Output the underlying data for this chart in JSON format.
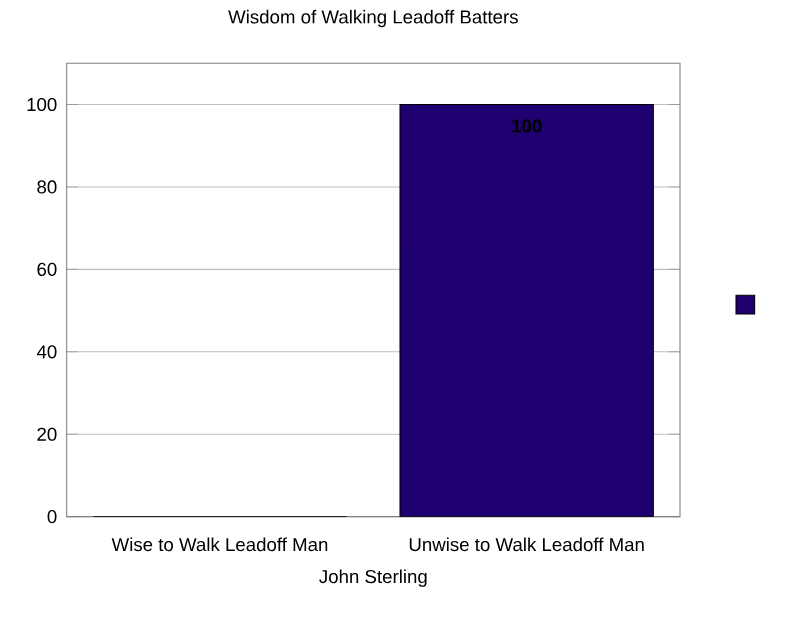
{
  "chart_data": {
    "type": "bar",
    "title": "Wisdom of Walking Leadoff Batters",
    "xlabel": "John Sterling",
    "categories": [
      "Wise to Walk Leadoff Man",
      "Unwise to Walk Leadoff Man"
    ],
    "values": [
      0,
      100
    ],
    "value_labels": [
      null,
      "100"
    ],
    "color": "#1e0070",
    "ylim": [
      0,
      110
    ],
    "yticks": [
      0,
      20,
      40,
      60,
      80,
      100
    ],
    "grid": "y"
  }
}
